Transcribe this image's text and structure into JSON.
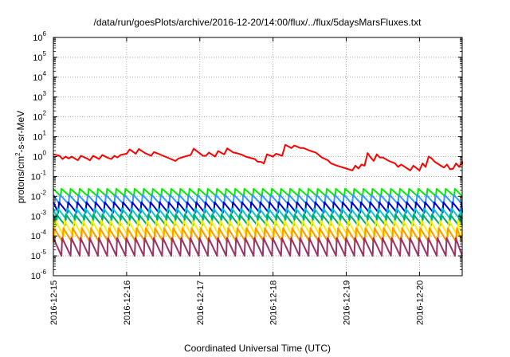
{
  "chart_data": {
    "type": "line",
    "title": "/data/run/goesPlots/archive/2016-12-20/14:00/flux/../flux/5daysMarsFluxes.txt",
    "xlabel": "Coordinated Universal Time (UTC)",
    "ylabel": "protons/cm2-s-sr-MeV",
    "ylabel_parts": {
      "pre": "protons/cm",
      "sup": "2",
      "post": "-s-sr-MeV"
    },
    "y_scale": "log",
    "ylim": [
      1e-06,
      1000000.0
    ],
    "y_ticks": [
      {
        "base": "10",
        "exp": "-6",
        "value": 1e-06
      },
      {
        "base": "10",
        "exp": "-5",
        "value": 1e-05
      },
      {
        "base": "10",
        "exp": "-4",
        "value": 0.0001
      },
      {
        "base": "10",
        "exp": "-3",
        "value": 0.001
      },
      {
        "base": "10",
        "exp": "-2",
        "value": 0.01
      },
      {
        "base": "10",
        "exp": "-1",
        "value": 0.1
      },
      {
        "base": "10",
        "exp": "0",
        "value": 1
      },
      {
        "base": "10",
        "exp": "1",
        "value": 10
      },
      {
        "base": "10",
        "exp": "2",
        "value": 100
      },
      {
        "base": "10",
        "exp": "3",
        "value": 1000
      },
      {
        "base": "10",
        "exp": "4",
        "value": 10000
      },
      {
        "base": "10",
        "exp": "5",
        "value": 100000
      },
      {
        "base": "10",
        "exp": "6",
        "value": 1000000
      }
    ],
    "xlim": [
      "2016-12-15",
      "2016-12-20 14:00"
    ],
    "x_ticks": [
      "2016-12-15",
      "2016-12-16",
      "2016-12-17",
      "2016-12-18",
      "2016-12-19",
      "2016-12-20"
    ],
    "grid": true,
    "series": [
      {
        "color": "#ff0000",
        "style": "solid",
        "points": [
          [
            "2016-12-15 00:00",
            1.3
          ],
          [
            "2016-12-15 02:00",
            1.1
          ],
          [
            "2016-12-15 03:00",
            0.75
          ],
          [
            "2016-12-15 04:00",
            1.0
          ],
          [
            "2016-12-15 05:00",
            0.8
          ],
          [
            "2016-12-15 06:00",
            1.0
          ],
          [
            "2016-12-15 08:00",
            0.65
          ],
          [
            "2016-12-15 09:00",
            1.1
          ],
          [
            "2016-12-15 11:00",
            0.8
          ],
          [
            "2016-12-15 12:00",
            0.65
          ],
          [
            "2016-12-15 13:00",
            1.1
          ],
          [
            "2016-12-15 15:00",
            0.75
          ],
          [
            "2016-12-15 16:00",
            1.2
          ],
          [
            "2016-12-15 18:00",
            0.85
          ],
          [
            "2016-12-15 19:00",
            0.75
          ],
          [
            "2016-12-15 20:00",
            1.1
          ],
          [
            "2016-12-15 21:00",
            0.9
          ],
          [
            "2016-12-15 22:00",
            1.2
          ],
          [
            "2016-12-16 00:00",
            1.4
          ],
          [
            "2016-12-16 01:00",
            2.3
          ],
          [
            "2016-12-16 03:00",
            1.4
          ],
          [
            "2016-12-16 04:00",
            2.4
          ],
          [
            "2016-12-16 06:00",
            1.5
          ],
          [
            "2016-12-16 08:00",
            1.1
          ],
          [
            "2016-12-16 09:00",
            1.7
          ],
          [
            "2016-12-16 12:00",
            1.1
          ],
          [
            "2016-12-16 16:00",
            0.6
          ],
          [
            "2016-12-16 17:00",
            0.8
          ],
          [
            "2016-12-16 19:00",
            1.0
          ],
          [
            "2016-12-16 21:00",
            1.2
          ],
          [
            "2016-12-16 22:00",
            2.5
          ],
          [
            "2016-12-17 01:00",
            1.1
          ],
          [
            "2016-12-17 02:00",
            1.1
          ],
          [
            "2016-12-17 03:00",
            1.6
          ],
          [
            "2016-12-17 05:00",
            1.0
          ],
          [
            "2016-12-17 06:00",
            1.9
          ],
          [
            "2016-12-17 08:00",
            1.3
          ],
          [
            "2016-12-17 09:00",
            2.6
          ],
          [
            "2016-12-17 11:00",
            1.6
          ],
          [
            "2016-12-17 12:00",
            1.5
          ],
          [
            "2016-12-17 14:00",
            1.2
          ],
          [
            "2016-12-17 15:00",
            1.0
          ],
          [
            "2016-12-17 18:00",
            0.75
          ],
          [
            "2016-12-17 19:00",
            0.55
          ],
          [
            "2016-12-17 20:00",
            0.55
          ],
          [
            "2016-12-17 21:00",
            0.45
          ],
          [
            "2016-12-17 22:00",
            1.3
          ],
          [
            "2016-12-18 00:00",
            1.0
          ],
          [
            "2016-12-18 01:00",
            1.4
          ],
          [
            "2016-12-18 03:00",
            1.1
          ],
          [
            "2016-12-18 04:00",
            3.9
          ],
          [
            "2016-12-18 06:00",
            2.7
          ],
          [
            "2016-12-18 07:00",
            3.6
          ],
          [
            "2016-12-18 09:00",
            2.7
          ],
          [
            "2016-12-18 10:00",
            2.7
          ],
          [
            "2016-12-18 12:00",
            2.0
          ],
          [
            "2016-12-18 14:00",
            1.6
          ],
          [
            "2016-12-18 16:00",
            0.9
          ],
          [
            "2016-12-18 18:00",
            0.65
          ],
          [
            "2016-12-18 19:00",
            0.45
          ],
          [
            "2016-12-18 21:00",
            0.35
          ],
          [
            "2016-12-19 00:00",
            0.25
          ],
          [
            "2016-12-19 02:00",
            0.2
          ],
          [
            "2016-12-19 03:00",
            0.35
          ],
          [
            "2016-12-19 04:00",
            0.25
          ],
          [
            "2016-12-19 05:00",
            0.4
          ],
          [
            "2016-12-19 06:00",
            0.35
          ],
          [
            "2016-12-19 07:00",
            1.5
          ],
          [
            "2016-12-19 08:00",
            0.9
          ],
          [
            "2016-12-19 09:00",
            0.6
          ],
          [
            "2016-12-19 10:00",
            1.3
          ],
          [
            "2016-12-19 11:00",
            0.9
          ],
          [
            "2016-12-19 12:00",
            0.9
          ],
          [
            "2016-12-19 14:00",
            0.6
          ],
          [
            "2016-12-19 16:00",
            0.45
          ],
          [
            "2016-12-19 17:00",
            0.3
          ],
          [
            "2016-12-19 18:00",
            0.4
          ],
          [
            "2016-12-19 20:00",
            0.25
          ],
          [
            "2016-12-19 21:00",
            0.2
          ],
          [
            "2016-12-19 22:00",
            0.35
          ],
          [
            "2016-12-20 00:00",
            0.2
          ],
          [
            "2016-12-20 01:00",
            0.45
          ],
          [
            "2016-12-20 02:00",
            0.3
          ],
          [
            "2016-12-20 03:00",
            1.0
          ],
          [
            "2016-12-20 04:00",
            0.8
          ],
          [
            "2016-12-20 05:00",
            0.55
          ],
          [
            "2016-12-20 07:00",
            0.35
          ],
          [
            "2016-12-20 08:00",
            0.28
          ],
          [
            "2016-12-20 09:00",
            0.4
          ],
          [
            "2016-12-20 10:00",
            0.23
          ],
          [
            "2016-12-20 11:00",
            0.24
          ],
          [
            "2016-12-20 12:00",
            0.45
          ],
          [
            "2016-12-20 13:00",
            0.3
          ],
          [
            "2016-12-20 14:00",
            0.55
          ],
          [
            "2016-12-20 14:00",
            0.4
          ]
        ]
      },
      {
        "color": "#00ee00",
        "style": "sawtooth",
        "high": 0.024,
        "low": 0.01
      },
      {
        "color": "#3399ff",
        "style": "sawtooth",
        "high": 0.012,
        "low": 0.004
      },
      {
        "color": "#0000cc",
        "style": "sawtooth",
        "high": 0.005,
        "low": 0.0015
      },
      {
        "color": "#00cccc",
        "style": "sawtooth",
        "high": 0.0025,
        "low": 0.0007
      },
      {
        "color": "#00aa66",
        "style": "sawtooth",
        "high": 0.0012,
        "low": 0.00035
      },
      {
        "color": "#ffee00",
        "style": "sawtooth",
        "high": 0.0006,
        "low": 0.0001
      },
      {
        "color": "#ff9900",
        "style": "sawtooth",
        "high": 0.00025,
        "low": 5e-05
      },
      {
        "color": "#993366",
        "style": "sawtooth",
        "high": 8e-05,
        "low": 1e-05
      }
    ],
    "sawtooth_period_hours": 3
  }
}
